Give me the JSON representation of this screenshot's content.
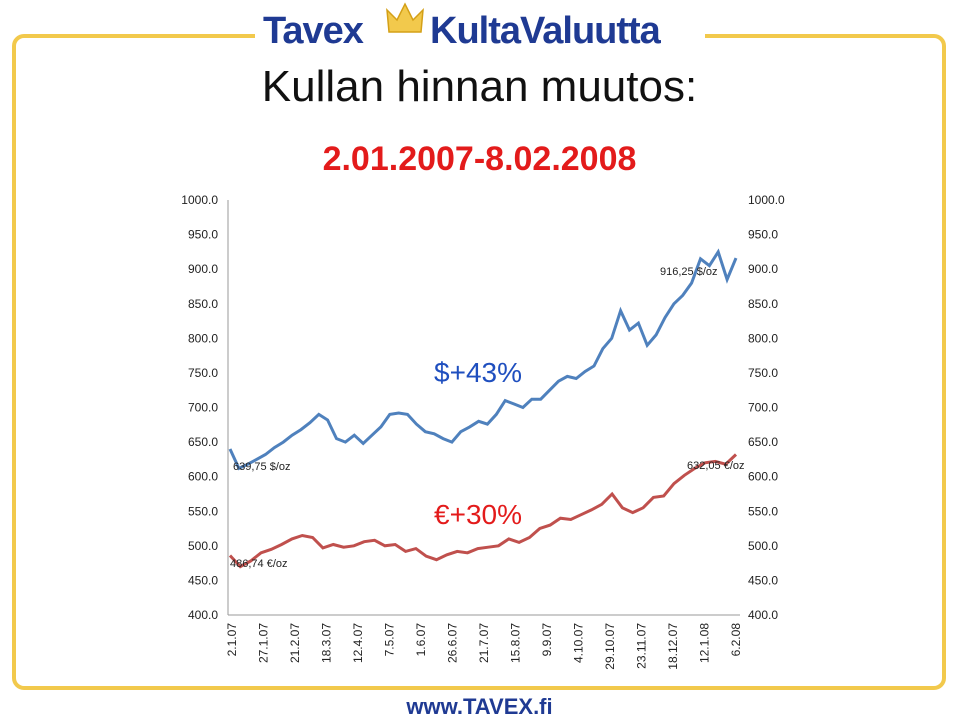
{
  "logo": {
    "left_text": "Tavex",
    "right_text": "KultaValuutta"
  },
  "title": "Kullan hinnan muutos:",
  "subtitle": "2.01.2007-8.02.2008",
  "footer": "www.TAVEX.fi",
  "colors": {
    "usd": "#4f81bd",
    "eur": "#c0504d",
    "frame": "#f2c94c",
    "brand": "#1f3a93",
    "subtitle": "#e31b1b"
  },
  "chart_data": {
    "type": "line",
    "x_tick_labels": [
      "2.1.07",
      "27.1.07",
      "21.2.07",
      "18.3.07",
      "12.4.07",
      "7.5.07",
      "1.6.07",
      "26.6.07",
      "21.7.07",
      "15.8.07",
      "9.9.07",
      "4.10.07",
      "29.10.07",
      "23.11.07",
      "18.12.07",
      "12.1.08",
      "6.2.08"
    ],
    "ylim": [
      400,
      1000
    ],
    "y_ticks": [
      "400.0",
      "450.0",
      "500.0",
      "550.0",
      "600.0",
      "650.0",
      "700.0",
      "750.0",
      "800.0",
      "850.0",
      "900.0",
      "950.0",
      "1000.0"
    ],
    "series": [
      {
        "key": "usd",
        "values": [
          640,
          612,
          618,
          625,
          632,
          642,
          650,
          660,
          668,
          678,
          690,
          682,
          655,
          650,
          660,
          648,
          660,
          672,
          690,
          692,
          690,
          676,
          665,
          662,
          655,
          650,
          665,
          672,
          680,
          676,
          690,
          710,
          705,
          700,
          712,
          712,
          725,
          738,
          745,
          742,
          752,
          760,
          785,
          800,
          840,
          812,
          822,
          790,
          805,
          830,
          850,
          862,
          880,
          915,
          905,
          925,
          885,
          916
        ]
      },
      {
        "key": "eur",
        "values": [
          486,
          470,
          478,
          490,
          495,
          502,
          510,
          515,
          512,
          497,
          502,
          498,
          500,
          506,
          508,
          500,
          502,
          492,
          496,
          485,
          480,
          487,
          492,
          490,
          496,
          498,
          500,
          510,
          505,
          512,
          525,
          530,
          540,
          538,
          545,
          552,
          560,
          575,
          555,
          548,
          555,
          570,
          572,
          590,
          602,
          612,
          620,
          622,
          618,
          632
        ]
      }
    ],
    "annotations": {
      "usd_pct": "$+43%",
      "eur_pct": "€+30%",
      "usd_start": "639,75 $/oz",
      "eur_start": "486,74 €/oz",
      "usd_end": "916,25 $/oz",
      "eur_end": "632,05 €/oz"
    }
  }
}
